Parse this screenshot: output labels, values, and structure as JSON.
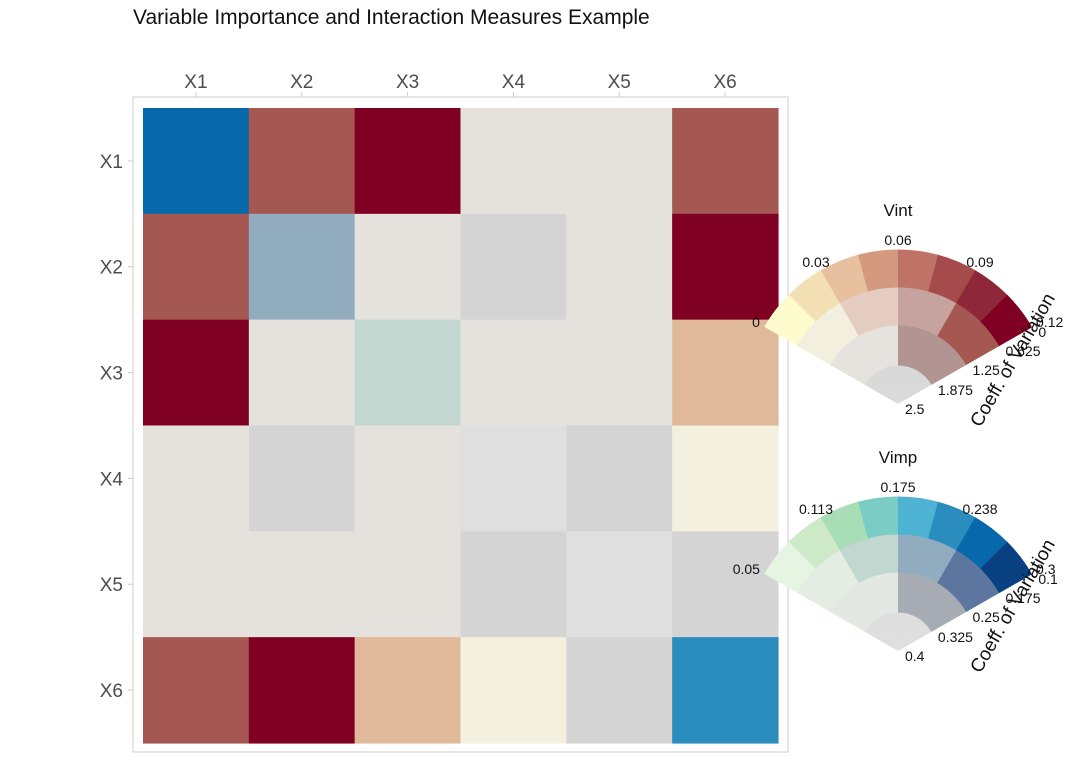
{
  "chart_data": {
    "type": "heatmap",
    "title": "Variable Importance and Interaction Measures Example",
    "x_categories": [
      "X1",
      "X2",
      "X3",
      "X4",
      "X5",
      "X6"
    ],
    "y_categories": [
      "X1",
      "X2",
      "X3",
      "X4",
      "X5",
      "X6"
    ],
    "diagonal_measure": "Vimp",
    "off_diagonal_measure": "Vint",
    "cell_colors": [
      [
        "#0769ab",
        "#a55751",
        "#800023",
        "#e5e2de",
        "#e5e2de",
        "#a55751"
      ],
      [
        "#a55751",
        "#92acbf",
        "#e5e2de",
        "#d4d4d4",
        "#e5e2de",
        "#800023"
      ],
      [
        "#800023",
        "#e5e2de",
        "#c1d7cf",
        "#e5e2de",
        "#e5e2de",
        "#dfb999"
      ],
      [
        "#e5e2de",
        "#d4d4d4",
        "#e5e2de",
        "#dfdfdf",
        "#d4d4d4",
        "#f4f0df"
      ],
      [
        "#e5e2de",
        "#e5e2de",
        "#e5e2de",
        "#d4d4d4",
        "#dfdfdf",
        "#d4d4d4"
      ],
      [
        "#a55751",
        "#800023",
        "#dfb999",
        "#f4f0df",
        "#d4d4d4",
        "#2b8cbe"
      ]
    ],
    "legends": [
      {
        "title": "Vint",
        "axis_title": "Coeff. of Variation",
        "value_breaks": [
          "0",
          "0.03",
          "0.06",
          "0.09",
          "0.12"
        ],
        "cv_breaks": [
          "0",
          "0.625",
          "1.25",
          "1.875",
          "2.5"
        ],
        "colors": [
          [
            "#fefbce",
            "#f2dfb4",
            "#e7c09f",
            "#d49a80",
            "#bf7366",
            "#a54b4c",
            "#8e2739",
            "#800023"
          ],
          [
            "#f3efdf",
            "#f3efdf",
            "#e4ccc0",
            "#e4ccc0",
            "#c6a39e",
            "#c6a39e",
            "#a55751",
            "#a55751"
          ],
          [
            "#e6e3de",
            "#e6e3de",
            "#e6e3de",
            "#e6e3de",
            "#b29492",
            "#b29492",
            "#b29492",
            "#b29492"
          ],
          [
            "#d9d9d9",
            "#d9d9d9",
            "#d9d9d9",
            "#d9d9d9",
            "#d9d9d9",
            "#d9d9d9",
            "#d9d9d9",
            "#d9d9d9"
          ]
        ]
      },
      {
        "title": "Vimp",
        "axis_title": "Coeff. of Variation",
        "value_breaks": [
          "0.05",
          "0.113",
          "0.175",
          "0.238",
          "0.3"
        ],
        "cv_breaks": [
          "0.1",
          "0.175",
          "0.25",
          "0.325",
          "0.4"
        ],
        "colors": [
          [
            "#e6f5e1",
            "#cde9c8",
            "#a8ddb5",
            "#7bccc4",
            "#4eb3d3",
            "#2b8cbe",
            "#0769ab",
            "#084081"
          ],
          [
            "#e3ede2",
            "#e3ede2",
            "#c1d7cf",
            "#c1d7cf",
            "#92acbf",
            "#92acbf",
            "#5c76a0",
            "#5c76a0"
          ],
          [
            "#e3e8e3",
            "#e3e8e3",
            "#e3e8e3",
            "#e3e8e3",
            "#a7abb4",
            "#a7abb4",
            "#a7abb4",
            "#a7abb4"
          ],
          [
            "#dedede",
            "#dedede",
            "#dedede",
            "#dedede",
            "#dedede",
            "#dedede",
            "#dedede",
            "#dedede"
          ]
        ]
      }
    ]
  }
}
